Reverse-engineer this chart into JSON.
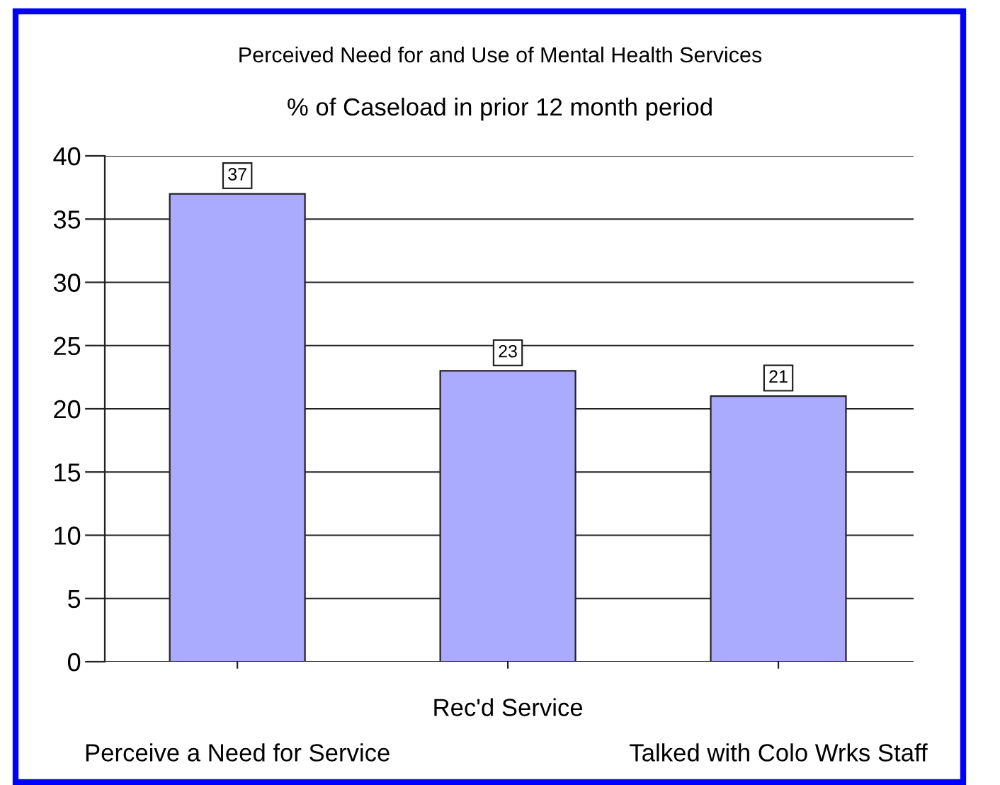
{
  "chart_data": {
    "type": "bar",
    "title": "Perceived Need for and Use of Mental Health Services",
    "subtitle": "% of Caseload in prior 12 month period",
    "categories": [
      "Perceive a Need for Service",
      "Rec'd Service",
      "Talked with Colo Wrks Staff"
    ],
    "values": [
      37,
      23,
      21
    ],
    "color": "#aaaaff",
    "ylim": [
      0,
      40
    ],
    "yticks": [
      0,
      5,
      10,
      15,
      20,
      25,
      30,
      35,
      40
    ],
    "grid": "y",
    "data_labels": true,
    "legend": false
  }
}
